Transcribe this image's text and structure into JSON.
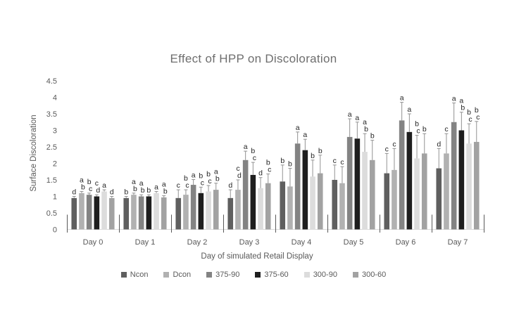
{
  "chart_data": {
    "type": "bar",
    "title": "Effect of HPP on Discoloration",
    "xlabel": "Day of simulated Retail Display",
    "ylabel": "Surface Discoloration",
    "ylim": [
      0,
      4.5
    ],
    "ytick_step": 0.5,
    "grid": false,
    "legend_position": "bottom",
    "error_bars": "upper-only",
    "annotation_style": "significance-letters-above-error-bars",
    "categories": [
      "Day 0",
      "Day 1",
      "Day 2",
      "Day 3",
      "Day 4",
      "Day 5",
      "Day 6",
      "Day 7"
    ],
    "series": [
      {
        "name": "Ncon",
        "color": "#5f5f5f",
        "values": [
          0.95,
          0.95,
          0.95,
          0.95,
          1.45,
          1.5,
          1.7,
          1.85
        ],
        "errors_up": [
          0.05,
          0.05,
          0.25,
          0.25,
          0.5,
          0.45,
          0.6,
          0.6
        ],
        "sig_letters": [
          "d",
          "b",
          "c",
          "d",
          "b",
          "c",
          "c",
          "d"
        ]
      },
      {
        "name": "Dcon",
        "color": "#b1b1b1",
        "values": [
          1.1,
          1.05,
          1.05,
          1.2,
          1.3,
          1.4,
          1.8,
          2.3
        ],
        "errors_up": [
          0.05,
          0.05,
          0.15,
          0.3,
          0.55,
          0.5,
          0.65,
          0.6
        ],
        "sig_letters": [
          "ab",
          "ab",
          "bc",
          "cd",
          "b",
          "c",
          "c",
          "c"
        ]
      },
      {
        "name": "375-90",
        "color": "#838383",
        "values": [
          1.05,
          1.0,
          1.35,
          2.1,
          2.6,
          2.8,
          3.3,
          3.25
        ],
        "errors_up": [
          0.05,
          0.05,
          0.16,
          0.27,
          0.35,
          0.55,
          0.55,
          0.58
        ],
        "sig_letters": [
          "bc",
          "ab",
          "a",
          "a",
          "a",
          "a",
          "a",
          "a"
        ]
      },
      {
        "name": "375-60",
        "color": "#1e1e1e",
        "values": [
          1.0,
          1.0,
          1.1,
          1.65,
          2.4,
          2.75,
          2.95,
          3.0
        ],
        "errors_up": [
          0.05,
          0.05,
          0.18,
          0.38,
          0.33,
          0.5,
          0.55,
          0.55
        ],
        "sig_letters": [
          "cd",
          "b",
          "bc",
          "bc",
          "a",
          "a",
          "a",
          "ab"
        ]
      },
      {
        "name": "300-90",
        "color": "#dcdcdc",
        "values": [
          1.15,
          1.1,
          1.15,
          1.25,
          1.6,
          2.35,
          2.15,
          2.6
        ],
        "errors_up": [
          0.05,
          0.05,
          0.18,
          0.32,
          0.5,
          0.55,
          0.7,
          0.6
        ],
        "sig_letters": [
          "a",
          "a",
          "bc",
          "d",
          "b",
          "ab",
          "bc",
          "bc"
        ]
      },
      {
        "name": "300-60",
        "color": "#a2a2a2",
        "values": [
          0.95,
          0.97,
          1.2,
          1.4,
          1.7,
          2.1,
          2.3,
          2.65
        ],
        "errors_up": [
          0.05,
          0.05,
          0.2,
          0.28,
          0.55,
          0.6,
          0.6,
          0.62
        ],
        "sig_letters": [
          "d",
          "ab",
          "ab",
          "bc",
          "b",
          "b",
          "b",
          "bc"
        ]
      }
    ]
  },
  "styles": {
    "title_color": "#6e6e6e",
    "axis_text_color": "#595959",
    "sig_letter_color": "#262626",
    "baseline_color": "#d9d9d9",
    "divider_color": "#595959",
    "error_bar_color": "#929292",
    "background": "#ffffff"
  }
}
